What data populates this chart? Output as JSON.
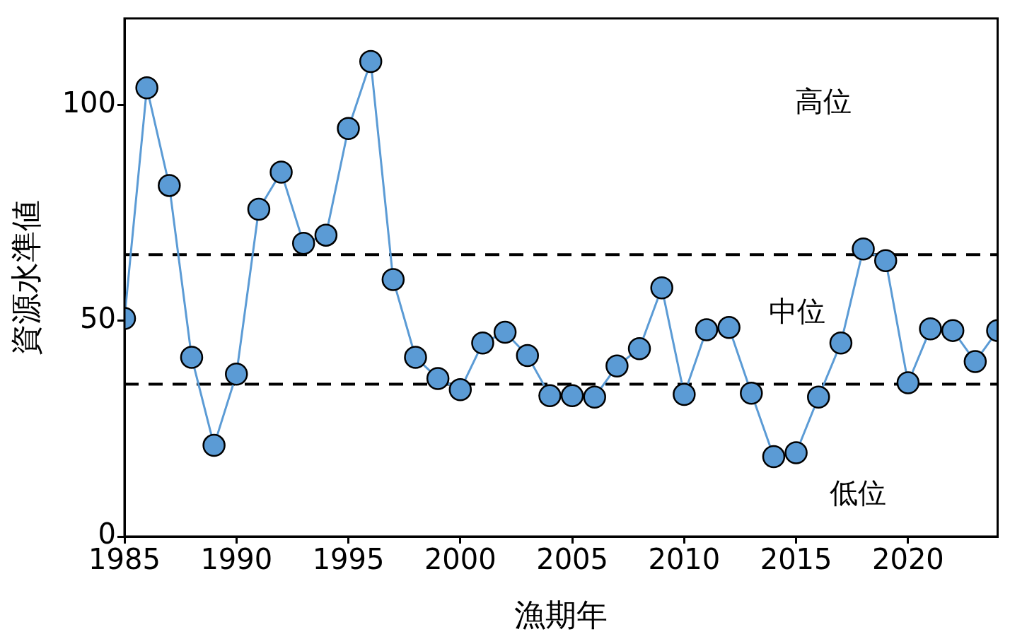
{
  "chart_data": {
    "type": "line",
    "xlabel": "漁期年",
    "ylabel": "資源水準値",
    "x": [
      1985,
      1986,
      1987,
      1988,
      1989,
      1990,
      1991,
      1992,
      1993,
      1994,
      1995,
      1996,
      1997,
      1998,
      1999,
      2000,
      2001,
      2002,
      2003,
      2004,
      2005,
      2006,
      2007,
      2008,
      2009,
      2010,
      2011,
      2012,
      2013,
      2014,
      2015,
      2016,
      2017,
      2018,
      2019,
      2020,
      2021,
      2022,
      2023,
      2024
    ],
    "series": [
      {
        "color": "#5b9bd5",
        "values": [
          50.5,
          103.9,
          81.3,
          41.5,
          21.1,
          37.6,
          75.8,
          84.4,
          67.9,
          69.8,
          94.5,
          110,
          59.5,
          41.5,
          36.6,
          34.0,
          44.8,
          47.3,
          41.9,
          32.6,
          32.6,
          32.3,
          39.5,
          43.5,
          57.6,
          32.9,
          47.9,
          48.4,
          33.2,
          18.5,
          19.4,
          32.3,
          44.8,
          66.6,
          63.9,
          35.6,
          48.1,
          47.7,
          40.5,
          47.7
        ]
      }
    ],
    "xlim": [
      1985,
      2024
    ],
    "xticks": [
      1985,
      1990,
      1995,
      2000,
      2005,
      2010,
      2015,
      2020
    ],
    "ylim": [
      0,
      120
    ],
    "yticks": [
      0,
      50,
      100
    ],
    "ref_lines": [
      {
        "axis": "y",
        "value": 65.3,
        "color": "#000000",
        "line_style": "dashed"
      },
      {
        "axis": "y",
        "value": 35.3,
        "color": "#000000",
        "line_style": "dashed"
      }
    ],
    "annotations": [
      "高位",
      "中位",
      "低位"
    ],
    "grid": false,
    "legend": false,
    "marker": "circle",
    "line_style": "solid"
  }
}
